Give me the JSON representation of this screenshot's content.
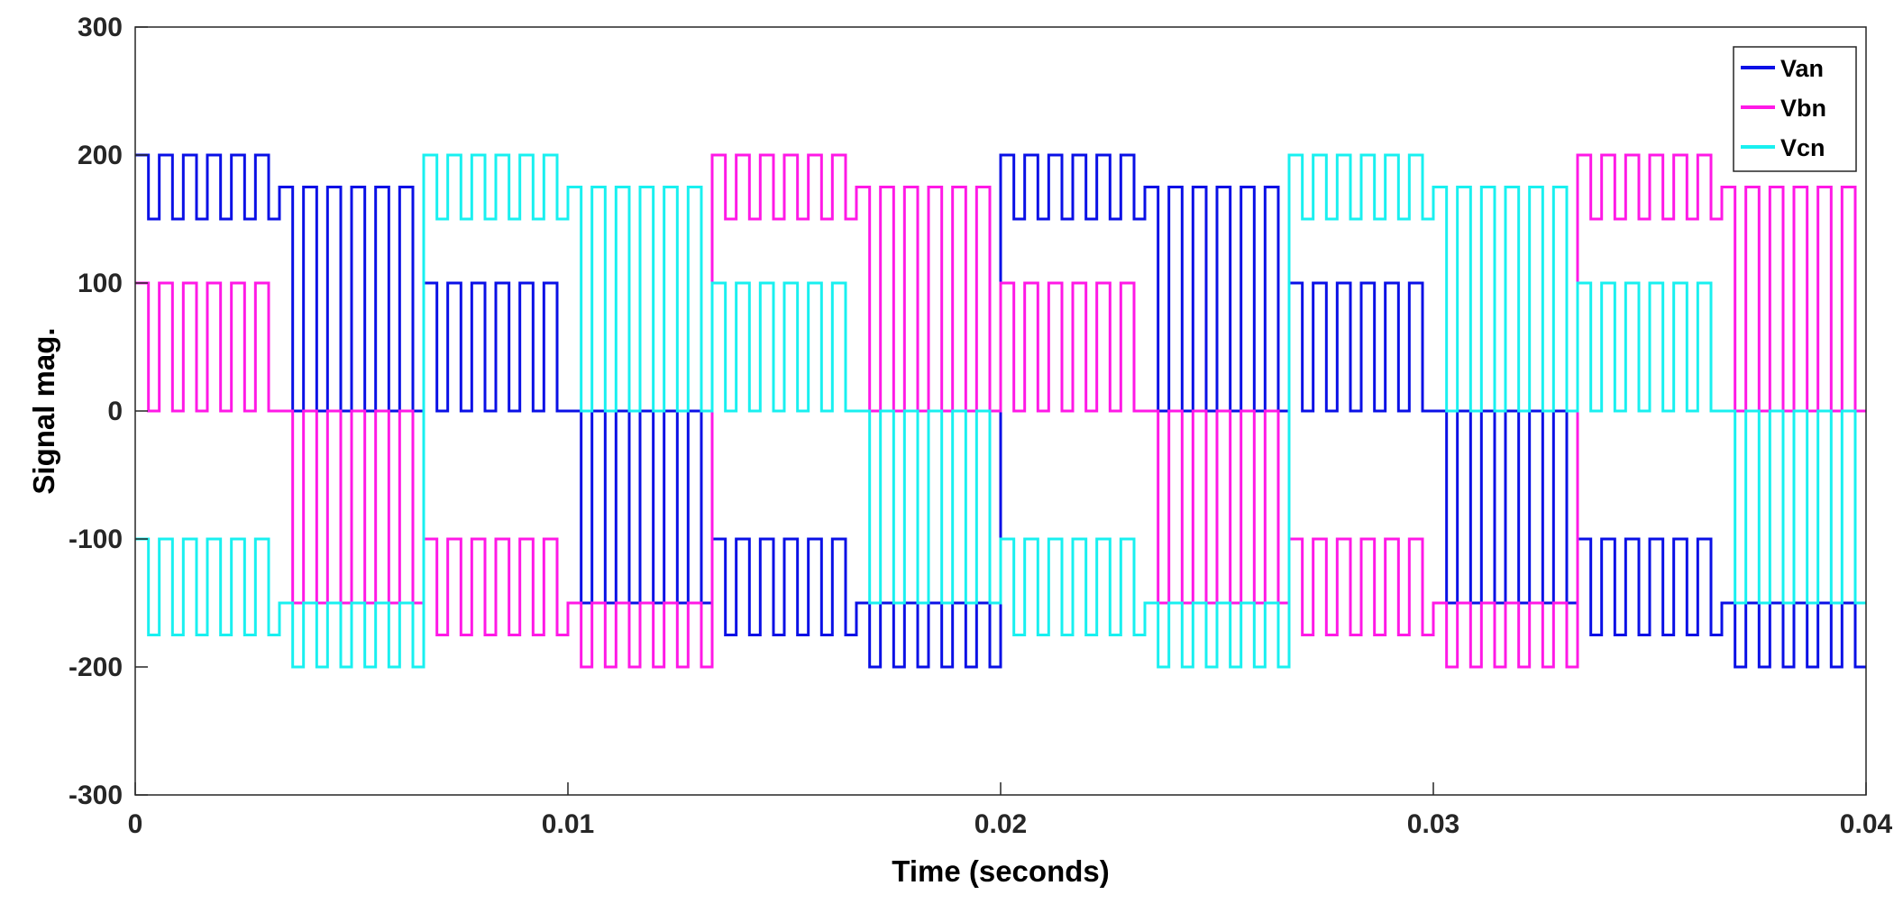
{
  "chart_data": {
    "type": "line",
    "title": "",
    "xlabel": "Time (seconds)",
    "ylabel": "Signal mag.",
    "xlim": [
      0,
      0.04
    ],
    "ylim": [
      -300,
      300
    ],
    "xticks": [
      0,
      0.01,
      0.02,
      0.03,
      0.04
    ],
    "xtick_labels": [
      "0",
      "0.01",
      "0.02",
      "0.03",
      "0.04"
    ],
    "yticks": [
      -300,
      -200,
      -100,
      0,
      100,
      200,
      300
    ],
    "ytick_labels": [
      "-300",
      "-200",
      "-100",
      "0",
      "100",
      "200",
      "300"
    ],
    "grid": false,
    "legend": "top-right",
    "fundamental_frequency_hz": 50,
    "switching_cycles_per_step": 6,
    "series": [
      {
        "name": "Van",
        "color": "#0a10e6",
        "phase_offset_steps": 0,
        "step_levels": [
          {
            "high": 200,
            "low": 150
          },
          {
            "high": 175,
            "low": 0
          },
          {
            "high": 100,
            "low": 0
          },
          {
            "high": 0,
            "low": -150
          },
          {
            "high": -100,
            "low": -175
          },
          {
            "high": -150,
            "low": -200
          }
        ]
      },
      {
        "name": "Vbn",
        "color": "#ff19e6",
        "phase_offset_steps": 2,
        "step_levels": [
          {
            "high": 200,
            "low": 150
          },
          {
            "high": 175,
            "low": 0
          },
          {
            "high": 100,
            "low": 0
          },
          {
            "high": 0,
            "low": -150
          },
          {
            "high": -100,
            "low": -175
          },
          {
            "high": -150,
            "low": -200
          }
        ]
      },
      {
        "name": "Vcn",
        "color": "#19f0f0",
        "phase_offset_steps": 4,
        "step_levels": [
          {
            "high": 200,
            "low": 150
          },
          {
            "high": 175,
            "low": 0
          },
          {
            "high": 100,
            "low": 0
          },
          {
            "high": 0,
            "low": -150
          },
          {
            "high": -100,
            "low": -175
          },
          {
            "high": -150,
            "low": -200
          }
        ]
      }
    ]
  }
}
